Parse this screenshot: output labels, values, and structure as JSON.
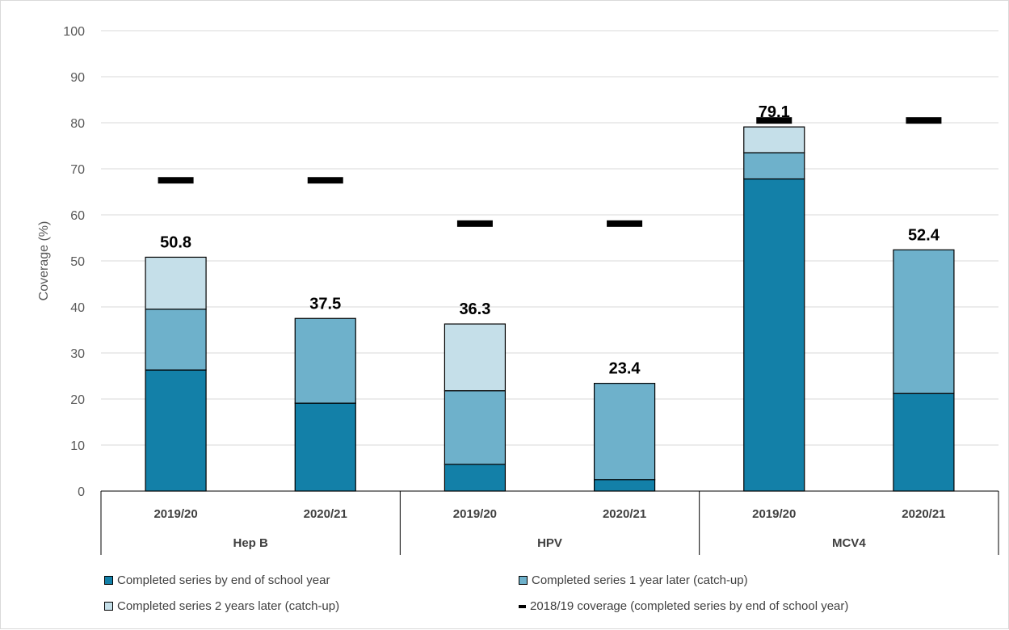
{
  "chart_data": {
    "type": "bar",
    "stacked": true,
    "ylabel": "Coverage (%)",
    "ylim": [
      0,
      100
    ],
    "yticks": [
      0,
      10,
      20,
      30,
      40,
      50,
      60,
      70,
      80,
      90,
      100
    ],
    "grid": true,
    "groups": [
      {
        "name": "Hep B",
        "categories": [
          "2019/20",
          "2020/21"
        ]
      },
      {
        "name": "HPV",
        "categories": [
          "2019/20",
          "2020/21"
        ]
      },
      {
        "name": "MCV4",
        "categories": [
          "2019/20",
          "2020/21"
        ]
      }
    ],
    "categories": [
      "Hep B 2019/20",
      "Hep B 2020/21",
      "HPV 2019/20",
      "HPV 2020/21",
      "MCV4 2019/20",
      "MCV4 2020/21"
    ],
    "series": [
      {
        "name": "Completed series by end of school year",
        "color": "#1380a8",
        "values": [
          26.3,
          19.1,
          5.8,
          2.5,
          67.8,
          21.2
        ]
      },
      {
        "name": "Completed series 1 year later (catch-up)",
        "color": "#6eb1cb",
        "values": [
          13.2,
          18.4,
          16.0,
          20.9,
          5.7,
          31.2
        ]
      },
      {
        "name": "Completed series 2 years later (catch-up)",
        "color": "#c5dfe9",
        "values": [
          11.3,
          0,
          14.5,
          0,
          5.6,
          0
        ]
      }
    ],
    "totals": [
      "50.8",
      "37.5",
      "36.3",
      "23.4",
      "79.1",
      "52.4"
    ],
    "reference": {
      "name": "2018/19 coverage (completed series by end of school year)",
      "color": "#000000",
      "values": [
        67.5,
        67.5,
        58.1,
        58.1,
        80.5,
        80.5
      ]
    },
    "legend_position": "bottom"
  }
}
